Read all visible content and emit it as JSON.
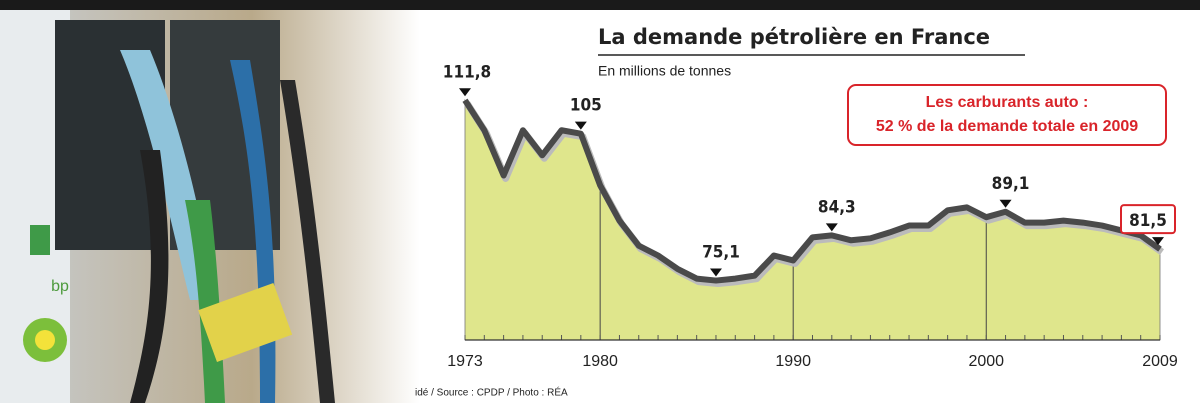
{
  "chart_data": {
    "type": "area",
    "title": "La demande pétrolière en France",
    "subtitle": "En millions de tonnes",
    "annotation": [
      "Les carburants auto :",
      "52 % de la demande totale en 2009"
    ],
    "source": "idé / Source : CPDP / Photo : RÉA",
    "x": [
      1973,
      1974,
      1975,
      1976,
      1977,
      1978,
      1979,
      1980,
      1981,
      1982,
      1983,
      1984,
      1985,
      1986,
      1987,
      1988,
      1989,
      1990,
      1991,
      1992,
      1993,
      1994,
      1995,
      1996,
      1997,
      1998,
      1999,
      2000,
      2001,
      2002,
      2003,
      2004,
      2005,
      2006,
      2007,
      2008,
      2009
    ],
    "series": [
      {
        "color": "#dfe68c",
        "values": [
          111.8,
          105.7,
          96.5,
          105.7,
          100.6,
          105.7,
          105,
          94.5,
          87.3,
          82.2,
          80.2,
          77.5,
          75.5,
          75.1,
          75.5,
          76.1,
          80.2,
          79.2,
          83.9,
          84.3,
          83.3,
          83.7,
          84.9,
          86.3,
          86.3,
          89.4,
          90,
          88,
          89.1,
          86.9,
          86.9,
          87.3,
          86.9,
          86.3,
          85.3,
          84.3,
          81.5
        ],
        "value_labels": [
          "111,8",
          null,
          null,
          null,
          null,
          null,
          "105",
          null,
          null,
          null,
          null,
          null,
          null,
          "75,1",
          null,
          null,
          null,
          null,
          null,
          "84,3",
          null,
          null,
          null,
          null,
          null,
          null,
          null,
          null,
          "89,1",
          null,
          null,
          null,
          null,
          null,
          null,
          null,
          "81,5"
        ]
      }
    ],
    "xlim": [
      1973,
      2009
    ],
    "xticks": [
      1973,
      1980,
      1990,
      2000,
      2009
    ],
    "ylim": [
      63,
      120
    ],
    "line_color": "#4a4a4a"
  }
}
